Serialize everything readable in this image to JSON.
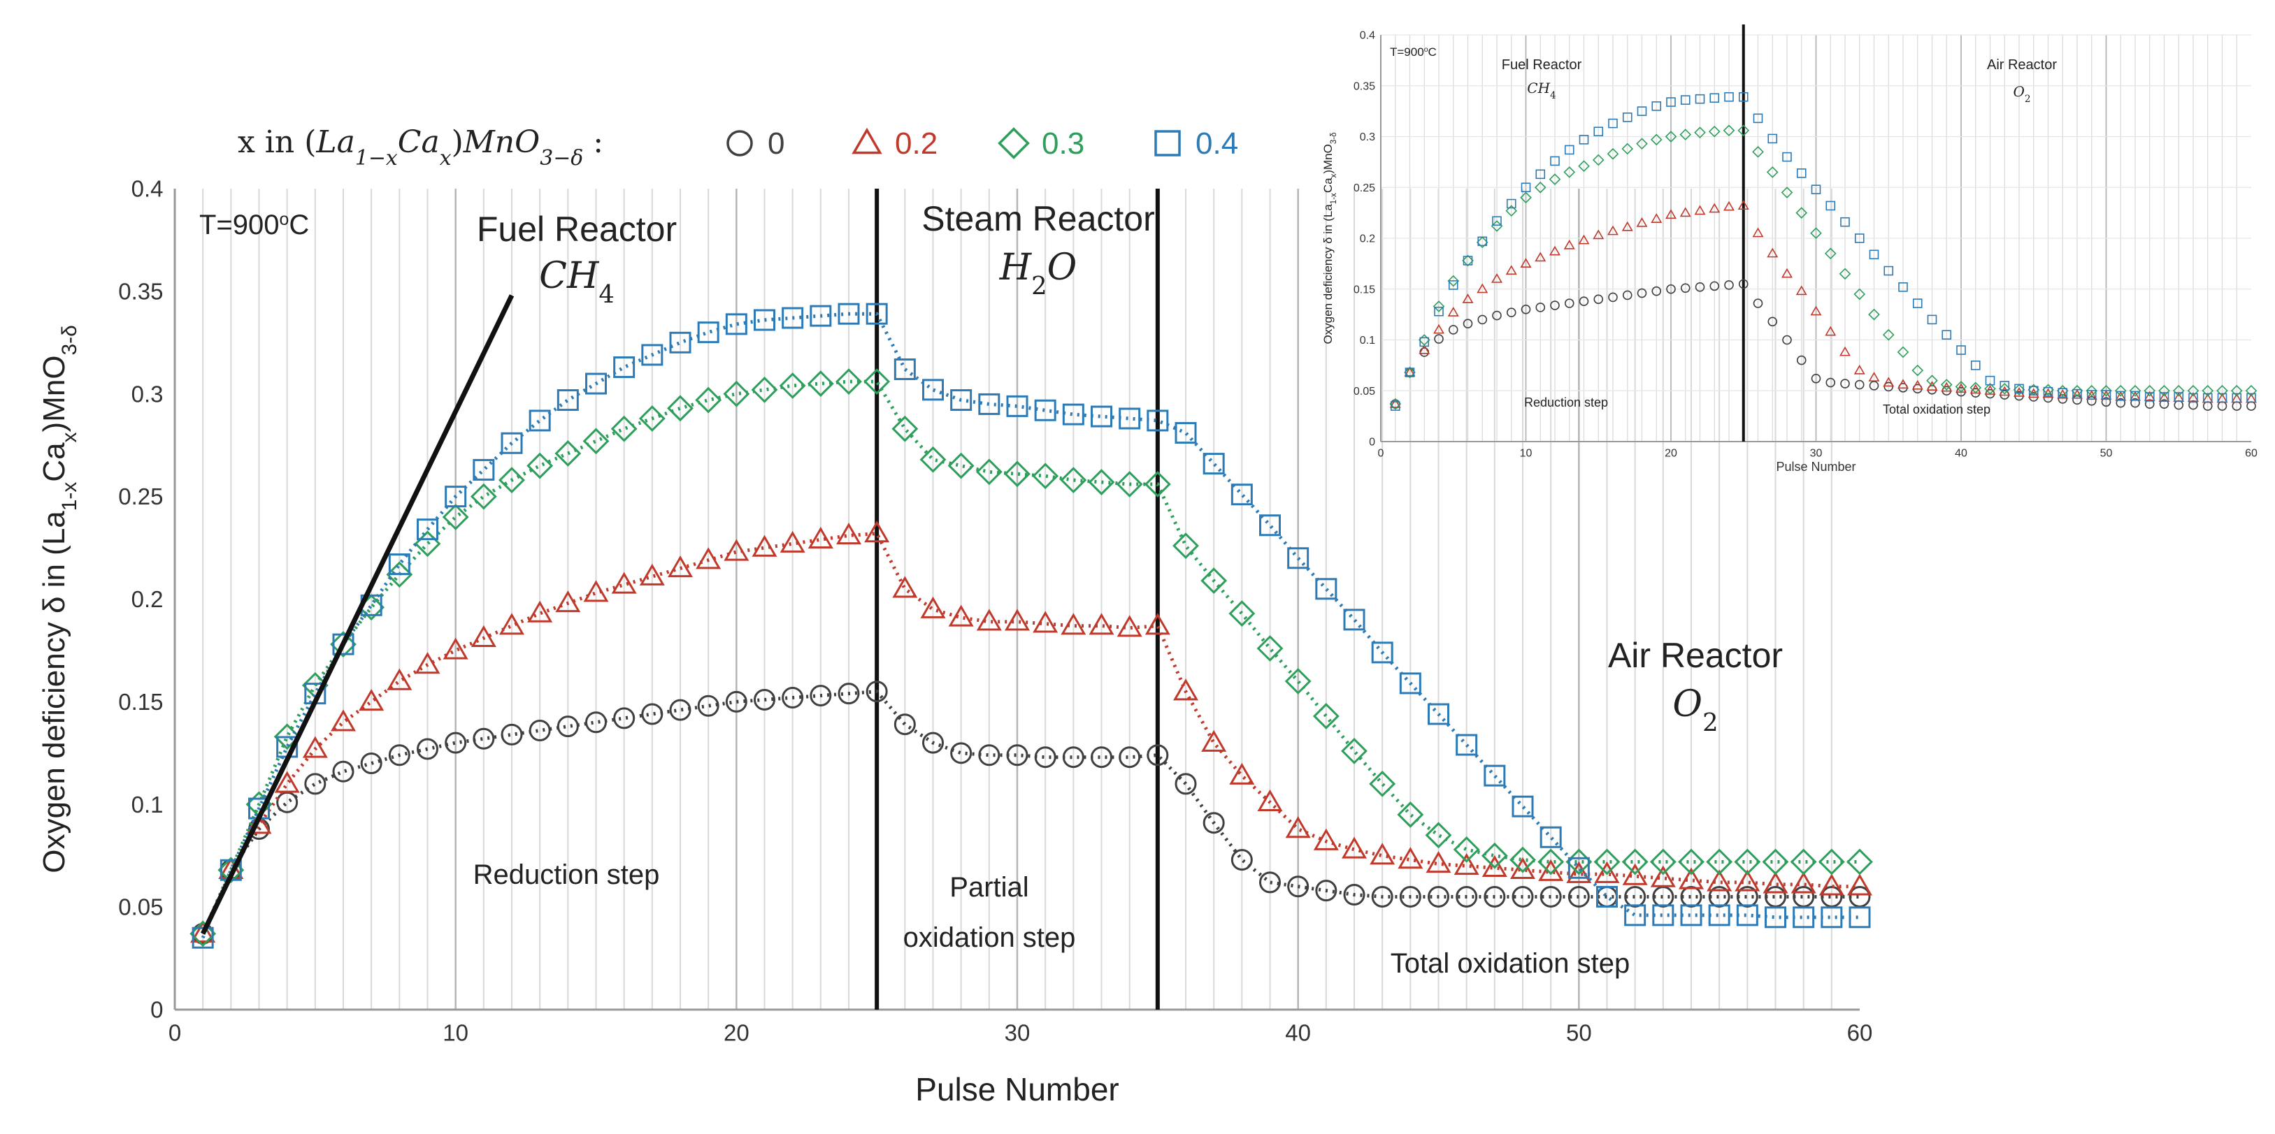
{
  "chart_data": [
    {
      "type": "scatter",
      "title": "",
      "xlabel": "Pulse Number",
      "ylabel": "Oxygen deficiency δ in (La1-xCax)MnO3-δ",
      "xlim": [
        0,
        60
      ],
      "ylim": [
        0,
        0.4
      ],
      "xticks": [
        "0",
        "10",
        "20",
        "30",
        "40",
        "50",
        "60"
      ],
      "yticks": [
        "0",
        "0.05",
        "0.1",
        "0.15",
        "0.2",
        "0.25",
        "0.3",
        "0.35",
        "0.4"
      ],
      "legend_title": "x in (La1−xCax)MnO3−δ :",
      "temperature_label": "T=900°C",
      "regions": [
        {
          "name": "Fuel Reactor",
          "gas": "CH4",
          "step": "Reduction step"
        },
        {
          "name": "Steam Reactor",
          "gas": "H2O",
          "step": "Partial oxidation step"
        },
        {
          "name": "Air Reactor",
          "gas": "O2",
          "step": "Total oxidation step"
        }
      ],
      "step_lines_x": [
        25,
        35
      ],
      "series": [
        {
          "name": "0",
          "marker": "circle",
          "color": "#404040",
          "x_start": 1,
          "values": [
            0.037,
            0.068,
            0.088,
            0.101,
            0.11,
            0.116,
            0.12,
            0.124,
            0.127,
            0.13,
            0.132,
            0.134,
            0.136,
            0.138,
            0.14,
            0.142,
            0.144,
            0.146,
            0.148,
            0.15,
            0.151,
            0.152,
            0.153,
            0.154,
            0.155,
            0.139,
            0.13,
            0.125,
            0.124,
            0.124,
            0.123,
            0.123,
            0.123,
            0.123,
            0.124,
            0.11,
            0.091,
            0.073,
            0.062,
            0.06,
            0.058,
            0.056,
            0.055,
            0.055,
            0.055,
            0.055,
            0.055,
            0.055,
            0.055,
            0.055,
            0.055,
            0.055,
            0.055,
            0.055,
            0.055,
            0.055,
            0.055,
            0.055,
            0.055,
            0.055
          ]
        },
        {
          "name": "0.2",
          "marker": "triangle",
          "color": "#c0392b",
          "x_start": 1,
          "values": [
            0.037,
            0.068,
            0.09,
            0.11,
            0.127,
            0.14,
            0.15,
            0.16,
            0.168,
            0.175,
            0.181,
            0.187,
            0.193,
            0.198,
            0.203,
            0.207,
            0.211,
            0.215,
            0.219,
            0.223,
            0.225,
            0.227,
            0.229,
            0.231,
            0.232,
            0.205,
            0.195,
            0.191,
            0.189,
            0.189,
            0.188,
            0.187,
            0.187,
            0.186,
            0.187,
            0.155,
            0.13,
            0.114,
            0.101,
            0.088,
            0.082,
            0.078,
            0.075,
            0.073,
            0.071,
            0.07,
            0.069,
            0.068,
            0.067,
            0.066,
            0.066,
            0.065,
            0.064,
            0.063,
            0.062,
            0.062,
            0.061,
            0.061,
            0.06,
            0.06
          ]
        },
        {
          "name": "0.3",
          "marker": "diamond",
          "color": "#2e9e5b",
          "x_start": 1,
          "values": [
            0.037,
            0.068,
            0.1,
            0.133,
            0.158,
            0.178,
            0.196,
            0.212,
            0.227,
            0.24,
            0.25,
            0.258,
            0.265,
            0.271,
            0.277,
            0.283,
            0.288,
            0.293,
            0.297,
            0.3,
            0.302,
            0.304,
            0.305,
            0.306,
            0.306,
            0.283,
            0.268,
            0.265,
            0.262,
            0.261,
            0.26,
            0.258,
            0.257,
            0.256,
            0.256,
            0.226,
            0.209,
            0.193,
            0.176,
            0.16,
            0.143,
            0.126,
            0.11,
            0.095,
            0.085,
            0.078,
            0.075,
            0.073,
            0.072,
            0.072,
            0.072,
            0.072,
            0.072,
            0.072,
            0.072,
            0.072,
            0.072,
            0.072,
            0.072,
            0.072
          ]
        },
        {
          "name": "0.4",
          "marker": "square",
          "color": "#2c7bb6",
          "x_start": 1,
          "values": [
            0.035,
            0.068,
            0.098,
            0.128,
            0.154,
            0.178,
            0.197,
            0.217,
            0.234,
            0.25,
            0.263,
            0.276,
            0.287,
            0.297,
            0.305,
            0.313,
            0.319,
            0.325,
            0.33,
            0.334,
            0.336,
            0.337,
            0.338,
            0.339,
            0.339,
            0.312,
            0.302,
            0.297,
            0.295,
            0.294,
            0.292,
            0.29,
            0.289,
            0.288,
            0.287,
            0.281,
            0.266,
            0.251,
            0.236,
            0.22,
            0.205,
            0.19,
            0.174,
            0.159,
            0.144,
            0.129,
            0.114,
            0.099,
            0.084,
            0.069,
            0.055,
            0.046,
            0.046,
            0.046,
            0.046,
            0.046,
            0.045,
            0.045,
            0.045,
            0.045
          ]
        }
      ]
    },
    {
      "type": "scatter",
      "title": "",
      "xlabel": "Pulse Number",
      "ylabel": "Oxygen deficiency δ in (La1-xCax)MnO3-δ",
      "xlim": [
        0,
        60
      ],
      "ylim": [
        0,
        0.4
      ],
      "xticks": [
        "0",
        "10",
        "20",
        "30",
        "40",
        "50",
        "60"
      ],
      "yticks": [
        "0",
        "0.05",
        "0.1",
        "0.15",
        "0.2",
        "0.25",
        "0.3",
        "0.35",
        "0.4"
      ],
      "temperature_label": "T=900°C",
      "regions": [
        {
          "name": "Fuel Reactor",
          "gas": "CH4",
          "step": "Reduction step"
        },
        {
          "name": "Air Reactor",
          "gas": "O2",
          "step": "Total oxidation step"
        }
      ],
      "step_lines_x": [
        25
      ],
      "series": [
        {
          "name": "0",
          "marker": "circle",
          "color": "#404040",
          "x_start": 1,
          "values": [
            0.037,
            0.068,
            0.088,
            0.101,
            0.11,
            0.116,
            0.12,
            0.124,
            0.127,
            0.13,
            0.132,
            0.134,
            0.136,
            0.138,
            0.14,
            0.142,
            0.144,
            0.146,
            0.148,
            0.15,
            0.151,
            0.152,
            0.153,
            0.154,
            0.155,
            0.136,
            0.118,
            0.1,
            0.08,
            0.062,
            0.058,
            0.057,
            0.056,
            0.055,
            0.054,
            0.053,
            0.052,
            0.051,
            0.05,
            0.049,
            0.048,
            0.047,
            0.046,
            0.045,
            0.044,
            0.043,
            0.042,
            0.041,
            0.04,
            0.039,
            0.038,
            0.038,
            0.037,
            0.037,
            0.036,
            0.036,
            0.035,
            0.035,
            0.035,
            0.035
          ]
        },
        {
          "name": "0.2",
          "marker": "triangle",
          "color": "#c0392b",
          "x_start": 1,
          "values": [
            0.037,
            0.068,
            0.09,
            0.11,
            0.127,
            0.14,
            0.15,
            0.16,
            0.168,
            0.175,
            0.181,
            0.187,
            0.193,
            0.198,
            0.203,
            0.207,
            0.211,
            0.215,
            0.219,
            0.223,
            0.225,
            0.227,
            0.229,
            0.231,
            0.232,
            0.205,
            0.185,
            0.165,
            0.148,
            0.128,
            0.108,
            0.088,
            0.07,
            0.063,
            0.058,
            0.056,
            0.055,
            0.054,
            0.053,
            0.052,
            0.051,
            0.05,
            0.049,
            0.048,
            0.047,
            0.047,
            0.046,
            0.046,
            0.045,
            0.045,
            0.044,
            0.044,
            0.044,
            0.043,
            0.043,
            0.043,
            0.042,
            0.042,
            0.042,
            0.042
          ]
        },
        {
          "name": "0.3",
          "marker": "diamond",
          "color": "#2e9e5b",
          "x_start": 1,
          "values": [
            0.037,
            0.068,
            0.1,
            0.133,
            0.158,
            0.178,
            0.196,
            0.212,
            0.227,
            0.24,
            0.25,
            0.258,
            0.265,
            0.271,
            0.277,
            0.283,
            0.288,
            0.293,
            0.297,
            0.3,
            0.302,
            0.304,
            0.305,
            0.306,
            0.306,
            0.285,
            0.265,
            0.245,
            0.225,
            0.205,
            0.185,
            0.165,
            0.145,
            0.125,
            0.105,
            0.088,
            0.07,
            0.06,
            0.056,
            0.054,
            0.053,
            0.052,
            0.052,
            0.051,
            0.051,
            0.051,
            0.05,
            0.05,
            0.05,
            0.05,
            0.05,
            0.05,
            0.05,
            0.05,
            0.05,
            0.05,
            0.05,
            0.05,
            0.05,
            0.05
          ]
        },
        {
          "name": "0.4",
          "marker": "square",
          "color": "#2c7bb6",
          "x_start": 1,
          "values": [
            0.035,
            0.068,
            0.098,
            0.128,
            0.154,
            0.178,
            0.197,
            0.217,
            0.234,
            0.25,
            0.263,
            0.276,
            0.287,
            0.297,
            0.305,
            0.313,
            0.319,
            0.325,
            0.33,
            0.334,
            0.336,
            0.337,
            0.338,
            0.339,
            0.339,
            0.318,
            0.298,
            0.28,
            0.264,
            0.248,
            0.232,
            0.216,
            0.2,
            0.184,
            0.168,
            0.152,
            0.136,
            0.12,
            0.105,
            0.09,
            0.075,
            0.06,
            0.055,
            0.052,
            0.05,
            0.049,
            0.048,
            0.047,
            0.046,
            0.046,
            0.045,
            0.045,
            0.044,
            0.044,
            0.044,
            0.043,
            0.043,
            0.043,
            0.043,
            0.043
          ]
        }
      ]
    }
  ]
}
